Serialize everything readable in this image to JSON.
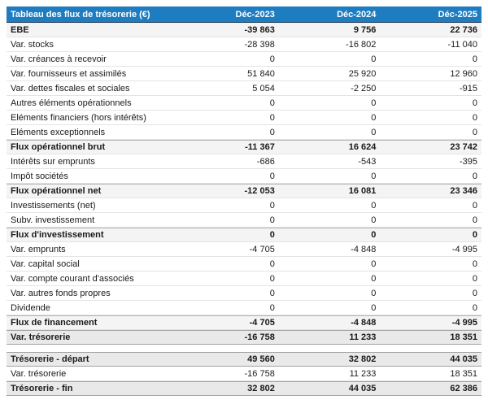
{
  "chart_data": {
    "type": "table",
    "title": "Tableau des flux de trésorerie (€)",
    "columns": [
      "Déc-2023",
      "Déc-2024",
      "Déc-2025"
    ],
    "rows": [
      {
        "label": "EBE",
        "values": [
          -39863,
          9756,
          22736
        ],
        "style": "subtotal"
      },
      {
        "label": "Var. stocks",
        "values": [
          -28398,
          -16802,
          -11040
        ],
        "style": "normal"
      },
      {
        "label": "Var. créances à recevoir",
        "values": [
          0,
          0,
          0
        ],
        "style": "normal"
      },
      {
        "label": "Var. fournisseurs et assimilés",
        "values": [
          51840,
          25920,
          12960
        ],
        "style": "normal"
      },
      {
        "label": "Var. dettes fiscales et sociales",
        "values": [
          5054,
          -2250,
          -915
        ],
        "style": "normal"
      },
      {
        "label": "Autres éléments opérationnels",
        "values": [
          0,
          0,
          0
        ],
        "style": "normal"
      },
      {
        "label": "Eléments financiers (hors intérêts)",
        "values": [
          0,
          0,
          0
        ],
        "style": "normal"
      },
      {
        "label": "Eléments exceptionnels",
        "values": [
          0,
          0,
          0
        ],
        "style": "normal"
      },
      {
        "label": "Flux opérationnel brut",
        "values": [
          -11367,
          16624,
          23742
        ],
        "style": "subtotal"
      },
      {
        "label": "Intérêts sur emprunts",
        "values": [
          -686,
          -543,
          -395
        ],
        "style": "normal"
      },
      {
        "label": "Impôt sociétés",
        "values": [
          0,
          0,
          0
        ],
        "style": "normal"
      },
      {
        "label": "Flux opérationnel net",
        "values": [
          -12053,
          16081,
          23346
        ],
        "style": "subtotal"
      },
      {
        "label": "Investissements (net)",
        "values": [
          0,
          0,
          0
        ],
        "style": "normal"
      },
      {
        "label": "Subv. investissement",
        "values": [
          0,
          0,
          0
        ],
        "style": "normal"
      },
      {
        "label": "Flux d'investissement",
        "values": [
          0,
          0,
          0
        ],
        "style": "subtotal"
      },
      {
        "label": "Var. emprunts",
        "values": [
          -4705,
          -4848,
          -4995
        ],
        "style": "normal"
      },
      {
        "label": "Var. capital social",
        "values": [
          0,
          0,
          0
        ],
        "style": "normal"
      },
      {
        "label": "Var. compte courant d'associés",
        "values": [
          0,
          0,
          0
        ],
        "style": "normal"
      },
      {
        "label": "Var. autres fonds propres",
        "values": [
          0,
          0,
          0
        ],
        "style": "normal"
      },
      {
        "label": "Dividende",
        "values": [
          0,
          0,
          0
        ],
        "style": "normal"
      },
      {
        "label": "Flux de financement",
        "values": [
          -4705,
          -4848,
          -4995
        ],
        "style": "subtotal"
      },
      {
        "label": "Var. trésorerie",
        "values": [
          -16758,
          11233,
          18351
        ],
        "style": "total"
      },
      {
        "style": "spacer"
      },
      {
        "label": "Trésorerie - départ",
        "values": [
          49560,
          32802,
          44035
        ],
        "style": "total"
      },
      {
        "label": "Var. trésorerie",
        "values": [
          -16758,
          11233,
          18351
        ],
        "style": "normal"
      },
      {
        "label": "Trésorerie - fin",
        "values": [
          32802,
          44035,
          62386
        ],
        "style": "total"
      }
    ]
  },
  "colors": {
    "header_bg": "#1e7cc0",
    "header_text": "#ffffff",
    "header_border": "#1e3a56",
    "subtotal_bg": "#f4f4f4",
    "total_bg": "#e9e9e9",
    "row_border": "#e4e4e4",
    "section_border": "#b3b3b3",
    "strong_border": "#a3a3a3",
    "text": "#1a1a1a"
  }
}
